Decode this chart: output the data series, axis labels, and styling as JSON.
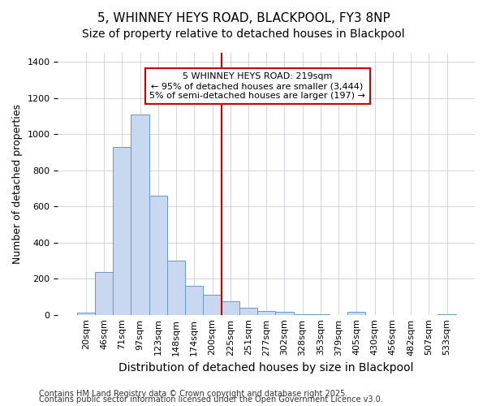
{
  "title1": "5, WHINNEY HEYS ROAD, BLACKPOOL, FY3 8NP",
  "title2": "Size of property relative to detached houses in Blackpool",
  "xlabel": "Distribution of detached houses by size in Blackpool",
  "ylabel": "Number of detached properties",
  "bar_labels": [
    "20sqm",
    "46sqm",
    "71sqm",
    "97sqm",
    "123sqm",
    "148sqm",
    "174sqm",
    "200sqm",
    "225sqm",
    "251sqm",
    "277sqm",
    "302sqm",
    "328sqm",
    "353sqm",
    "379sqm",
    "405sqm",
    "430sqm",
    "456sqm",
    "482sqm",
    "507sqm",
    "533sqm"
  ],
  "bar_values": [
    10,
    235,
    930,
    1110,
    660,
    300,
    160,
    110,
    75,
    40,
    20,
    15,
    5,
    5,
    0,
    15,
    0,
    0,
    0,
    0,
    3
  ],
  "bar_color": "#c8d8f0",
  "bar_edge_color": "#6699cc",
  "vline_label_idx": 8,
  "vline_color": "#cc0000",
  "annotation_title": "5 WHINNEY HEYS ROAD: 219sqm",
  "annotation_line1": "← 95% of detached houses are smaller (3,444)",
  "annotation_line2": "5% of semi-detached houses are larger (197) →",
  "annotation_box_facecolor": "#ffffff",
  "annotation_box_edgecolor": "#cc0000",
  "ylim": [
    0,
    1450
  ],
  "yticks": [
    0,
    200,
    400,
    600,
    800,
    1000,
    1200,
    1400
  ],
  "footnote1": "Contains HM Land Registry data © Crown copyright and database right 2025.",
  "footnote2": "Contains public sector information licensed under the Open Government Licence v3.0.",
  "bg_color": "#ffffff",
  "plot_bg_color": "#ffffff",
  "grid_color": "#ccccdd",
  "title1_fontsize": 11,
  "title2_fontsize": 10,
  "xlabel_fontsize": 10,
  "ylabel_fontsize": 9,
  "tick_fontsize": 8,
  "annot_fontsize": 8,
  "footnote_fontsize": 7
}
